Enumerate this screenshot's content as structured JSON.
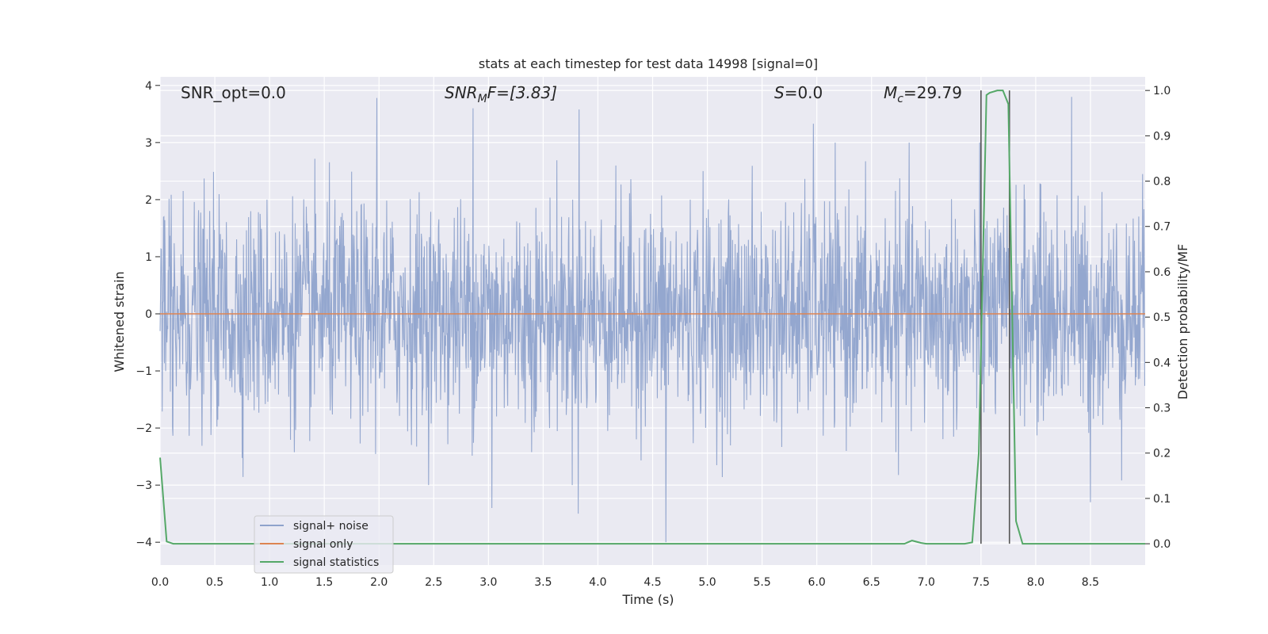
{
  "chart_data": {
    "type": "line",
    "title": "stats at each timestep for test data 14998 [signal=0]",
    "xlabel": "Time (s)",
    "ylabel_left": "Whitened strain",
    "ylabel_right": "Detection probability/MF",
    "xlim": [
      0.0,
      9.0
    ],
    "ylim_left": [
      -4.4,
      4.15
    ],
    "ylim_right": [
      -0.047,
      1.03
    ],
    "x_ticks": [
      "0.0",
      "0.5",
      "1.0",
      "1.5",
      "2.0",
      "2.5",
      "3.0",
      "3.5",
      "4.0",
      "4.5",
      "5.0",
      "5.5",
      "6.0",
      "6.5",
      "7.0",
      "7.5",
      "8.0",
      "8.5"
    ],
    "y_ticks_left": [
      "−4",
      "−3",
      "−2",
      "−1",
      "0",
      "1",
      "2",
      "3",
      "4"
    ],
    "y_ticks_right": [
      "0.0",
      "0.1",
      "0.2",
      "0.3",
      "0.4",
      "0.5",
      "0.6",
      "0.7",
      "0.8",
      "0.9",
      "1.0"
    ],
    "grid": true,
    "legend_position": "lower-left",
    "annotations": {
      "snr_opt": "SNR_opt=0.0",
      "snr_mf_main": "SNR",
      "snr_mf_sub": "M",
      "snr_mf_tail": "F=[3.83]",
      "s_main": "S",
      "s_tail": "=0.0",
      "mc_main": "M",
      "mc_sub": "c",
      "mc_tail": "=29.79"
    },
    "vertical_markers": [
      7.5,
      7.76
    ],
    "series": [
      {
        "name": "signal+ noise",
        "color": "#8fa3cc",
        "kind": "noise",
        "duration_s": 9.0,
        "sample_rate_hz": 256,
        "std": 1.0,
        "extremes": [
          {
            "x": 1.98,
            "y": 3.78
          },
          {
            "x": 2.86,
            "y": 3.6
          },
          {
            "x": 3.83,
            "y": 3.58
          },
          {
            "x": 5.97,
            "y": 3.33
          },
          {
            "x": 8.33,
            "y": 3.8
          },
          {
            "x": 4.62,
            "y": -4.0
          },
          {
            "x": 3.03,
            "y": -3.4
          },
          {
            "x": 3.82,
            "y": -3.5
          },
          {
            "x": 8.5,
            "y": -3.3
          }
        ]
      },
      {
        "name": "signal only",
        "color": "#dd8452",
        "x": [
          0.0,
          9.0
        ],
        "y": [
          0.0,
          0.0
        ]
      },
      {
        "name": "signal statistics",
        "color": "#55a868",
        "axis": "right",
        "x": [
          0.0,
          0.06,
          0.12,
          0.2,
          6.8,
          6.87,
          6.95,
          7.0,
          7.35,
          7.42,
          7.48,
          7.55,
          7.58,
          7.65,
          7.7,
          7.75,
          7.82,
          7.88,
          9.0
        ],
        "y": [
          0.19,
          0.005,
          0.0,
          0.0,
          0.0,
          0.007,
          0.002,
          0.0,
          0.0,
          0.003,
          0.2,
          0.99,
          0.995,
          1.0,
          1.0,
          0.97,
          0.05,
          0.0,
          0.0
        ]
      }
    ]
  }
}
